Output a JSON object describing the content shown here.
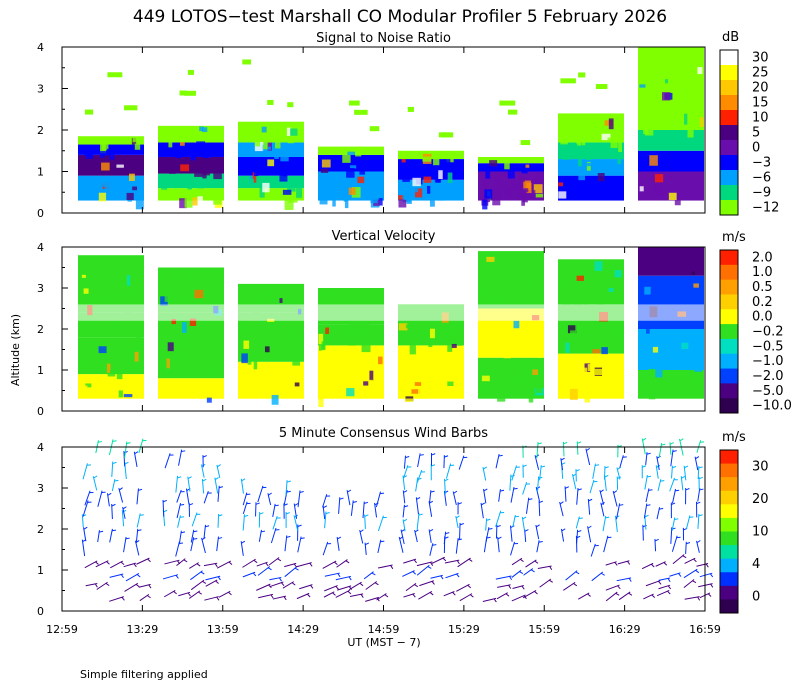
{
  "title": "449 LOTOS−test Marshall CO Modular Profiler  5 February 2026",
  "ylabel": "Altitude (km)",
  "xlabel": "UT  (MST − 7)",
  "footnote": "Simple filtering applied",
  "x_ticks": [
    "12:59",
    "13:29",
    "13:59",
    "14:29",
    "14:59",
    "15:29",
    "15:59",
    "16:29",
    "16:59"
  ],
  "y_ticks": [
    "0",
    "1",
    "2",
    "3",
    "4"
  ],
  "chart_data": [
    {
      "type": "heatmap",
      "title": "Signal to Noise Ratio",
      "unit": "dB",
      "ylim": [
        0,
        4
      ],
      "colorbar_ticks": [
        "30",
        "25",
        "20",
        "15",
        "10",
        "5",
        "0",
        "−3",
        "−6",
        "−9",
        "−12"
      ],
      "colorbar_colors": [
        "#ffffff",
        "#ffff00",
        "#ffc800",
        "#ff8c00",
        "#ff2000",
        "#4b0082",
        "#6a0dad",
        "#0000ff",
        "#00a0ff",
        "#00d880",
        "#80ff00"
      ],
      "profile_blocks": [
        {
          "top_km": 1.85,
          "layers": [
            [
              0.3,
              0.9,
              "#00a0ff"
            ],
            [
              0.9,
              1.4,
              "#4b0082"
            ],
            [
              1.4,
              1.65,
              "#0000ff"
            ],
            [
              1.65,
              1.85,
              "#80ff00"
            ]
          ]
        },
        {
          "top_km": 2.1,
          "layers": [
            [
              0.3,
              0.6,
              "#80ff00"
            ],
            [
              0.6,
              0.95,
              "#00d880"
            ],
            [
              0.95,
              1.35,
              "#4b0082"
            ],
            [
              1.35,
              1.7,
              "#0000ff"
            ],
            [
              1.7,
              2.1,
              "#80ff00"
            ]
          ]
        },
        {
          "top_km": 2.2,
          "layers": [
            [
              0.3,
              0.6,
              "#80ff00"
            ],
            [
              0.6,
              0.9,
              "#00d880"
            ],
            [
              0.9,
              1.35,
              "#0000ff"
            ],
            [
              1.35,
              1.7,
              "#00a0ff"
            ],
            [
              1.7,
              2.2,
              "#80ff00"
            ]
          ]
        },
        {
          "top_km": 1.6,
          "layers": [
            [
              0.3,
              1.0,
              "#00a0ff"
            ],
            [
              1.0,
              1.4,
              "#0000ff"
            ],
            [
              1.4,
              1.6,
              "#80ff00"
            ]
          ]
        },
        {
          "top_km": 1.5,
          "layers": [
            [
              0.3,
              0.8,
              "#00a0ff"
            ],
            [
              0.8,
              1.3,
              "#0000ff"
            ],
            [
              1.3,
              1.5,
              "#80ff00"
            ]
          ]
        },
        {
          "top_km": 1.35,
          "layers": [
            [
              0.3,
              1.0,
              "#6a0dad"
            ],
            [
              1.0,
              1.2,
              "#0000ff"
            ],
            [
              1.2,
              1.35,
              "#80ff00"
            ]
          ]
        },
        {
          "top_km": 2.4,
          "layers": [
            [
              0.3,
              0.9,
              "#0000ff"
            ],
            [
              0.9,
              1.3,
              "#00a0ff"
            ],
            [
              1.3,
              1.7,
              "#00d880"
            ],
            [
              1.7,
              2.4,
              "#80ff00"
            ]
          ]
        },
        {
          "top_km": 4.0,
          "layers": [
            [
              0.3,
              1.0,
              "#6a0dad"
            ],
            [
              1.0,
              1.5,
              "#0000ff"
            ],
            [
              1.5,
              2.0,
              "#00d880"
            ],
            [
              2.0,
              4.0,
              "#80ff00"
            ]
          ]
        }
      ]
    },
    {
      "type": "heatmap",
      "title": "Vertical Velocity",
      "unit": "m/s",
      "ylim": [
        0,
        4
      ],
      "colorbar_ticks": [
        "2.0",
        "1.0",
        "0.5",
        "0.2",
        "0.0",
        "−0.2",
        "−0.5",
        "−1.0",
        "−2.0",
        "−5.0",
        "−10.0"
      ],
      "colorbar_colors": [
        "#ff2000",
        "#ff7000",
        "#ffa000",
        "#ffd000",
        "#ffff00",
        "#30e020",
        "#00e0c0",
        "#00b0ff",
        "#0040ff",
        "#4b0082",
        "#300050"
      ],
      "profile_blocks": [
        {
          "top_km": 3.8,
          "layers": [
            [
              0.3,
              0.9,
              "#ffff00"
            ],
            [
              0.9,
              1.8,
              "#30e020"
            ],
            [
              1.8,
              2.4,
              "#30e020"
            ],
            [
              2.4,
              3.8,
              "#30e020"
            ]
          ]
        },
        {
          "top_km": 3.5,
          "layers": [
            [
              0.3,
              0.8,
              "#ffff00"
            ],
            [
              0.8,
              2.4,
              "#30e020"
            ],
            [
              2.4,
              3.5,
              "#30e020"
            ]
          ]
        },
        {
          "top_km": 3.1,
          "layers": [
            [
              0.3,
              1.2,
              "#ffff00"
            ],
            [
              1.2,
              2.4,
              "#30e020"
            ],
            [
              2.4,
              3.1,
              "#30e020"
            ]
          ]
        },
        {
          "top_km": 3.0,
          "layers": [
            [
              0.3,
              1.6,
              "#ffff00"
            ],
            [
              1.6,
              2.1,
              "#30e020"
            ],
            [
              2.1,
              3.0,
              "#30e020"
            ]
          ]
        },
        {
          "top_km": 2.6,
          "layers": [
            [
              0.3,
              1.6,
              "#ffff00"
            ],
            [
              1.6,
              2.6,
              "#30e020"
            ]
          ]
        },
        {
          "top_km": 3.9,
          "layers": [
            [
              0.3,
              1.3,
              "#30e020"
            ],
            [
              1.3,
              2.5,
              "#ffff00"
            ],
            [
              2.5,
              3.9,
              "#30e020"
            ]
          ]
        },
        {
          "top_km": 3.7,
          "layers": [
            [
              0.3,
              1.4,
              "#ffff00"
            ],
            [
              1.4,
              2.6,
              "#30e020"
            ],
            [
              2.6,
              3.7,
              "#30e020"
            ]
          ]
        },
        {
          "top_km": 4.0,
          "layers": [
            [
              0.3,
              1.0,
              "#30e020"
            ],
            [
              1.0,
              2.0,
              "#00b0ff"
            ],
            [
              2.0,
              3.3,
              "#0040ff"
            ],
            [
              3.3,
              4.0,
              "#4b0082"
            ]
          ]
        }
      ]
    },
    {
      "type": "scatter",
      "title": "5 Minute Consensus Wind Barbs",
      "unit": "m/s",
      "ylim": [
        0,
        4
      ],
      "colorbar_ticks": [
        "30",
        "20",
        "10",
        "4",
        "0"
      ],
      "colorbar_colors": [
        "#ff2000",
        "#ff7000",
        "#ffa000",
        "#ffd000",
        "#ffff00",
        "#80ff00",
        "#30e020",
        "#00e0a0",
        "#00b0ff",
        "#0030ff",
        "#4b0082",
        "#300050"
      ],
      "marker_rows_km": [
        0.3,
        0.55,
        0.8,
        1.1,
        1.4,
        1.7,
        2.0,
        2.3,
        2.6,
        2.9,
        3.2,
        3.5,
        3.8
      ],
      "marker_row_colors": [
        "#4b0082",
        "#4b0082",
        "#0030ff",
        "#4b0082",
        "#0030ff",
        "#0030ff",
        "#00b0ff",
        "#0030ff",
        "#0030ff",
        "#00b0ff",
        "#00b0ff",
        "#0030ff",
        "#00e0a0"
      ],
      "block_top_km": [
        4.0,
        3.5,
        3.1,
        2.8,
        3.5,
        3.9,
        4.0,
        4.0
      ]
    }
  ]
}
